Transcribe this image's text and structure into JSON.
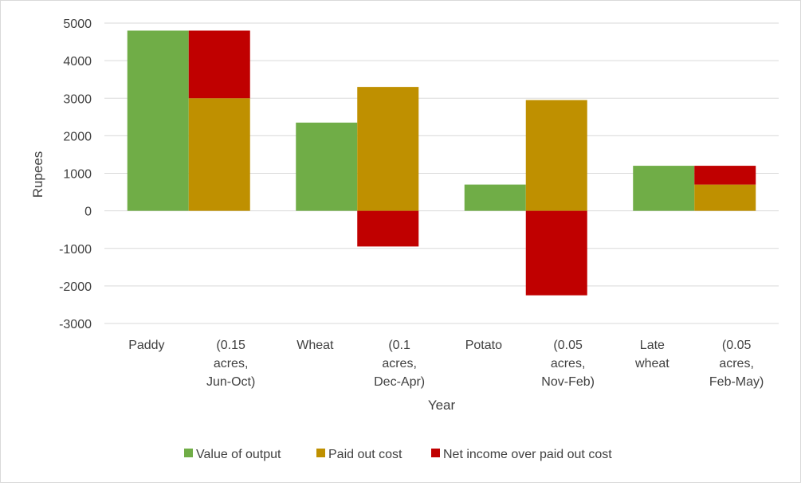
{
  "chart_data": {
    "type": "bar",
    "xlabel": "Year",
    "ylabel": "Rupees",
    "ylim": [
      -3000,
      5000
    ],
    "yticks": [
      5000,
      4000,
      3000,
      2000,
      1000,
      0,
      -1000,
      -2000,
      -3000
    ],
    "grid": true,
    "legend_position": "bottom",
    "category_labels": [
      [
        "Paddy"
      ],
      [
        "(0.15",
        "acres,",
        "Jun-Oct)"
      ],
      [
        "Wheat"
      ],
      [
        "(0.1",
        "acres,",
        "Dec-Apr)"
      ],
      [
        "Potato"
      ],
      [
        "(0.05",
        "acres,",
        "Nov-Feb)"
      ],
      [
        "Late",
        "wheat"
      ],
      [
        "(0.05",
        "acres,",
        "Feb-May)"
      ]
    ],
    "crops": [
      "Paddy",
      "Wheat",
      "Potato",
      "Late wheat"
    ],
    "series": [
      {
        "name": "Value of output",
        "color": "#70ad47",
        "values": [
          4800,
          2350,
          700,
          1200
        ]
      },
      {
        "name": "Paid out cost",
        "color": "#bf9000",
        "values": [
          3000,
          3300,
          2950,
          700
        ]
      },
      {
        "name": "Net income over paid out cost",
        "color": "#c00000",
        "values": [
          1800,
          -950,
          -2250,
          500
        ]
      }
    ]
  }
}
